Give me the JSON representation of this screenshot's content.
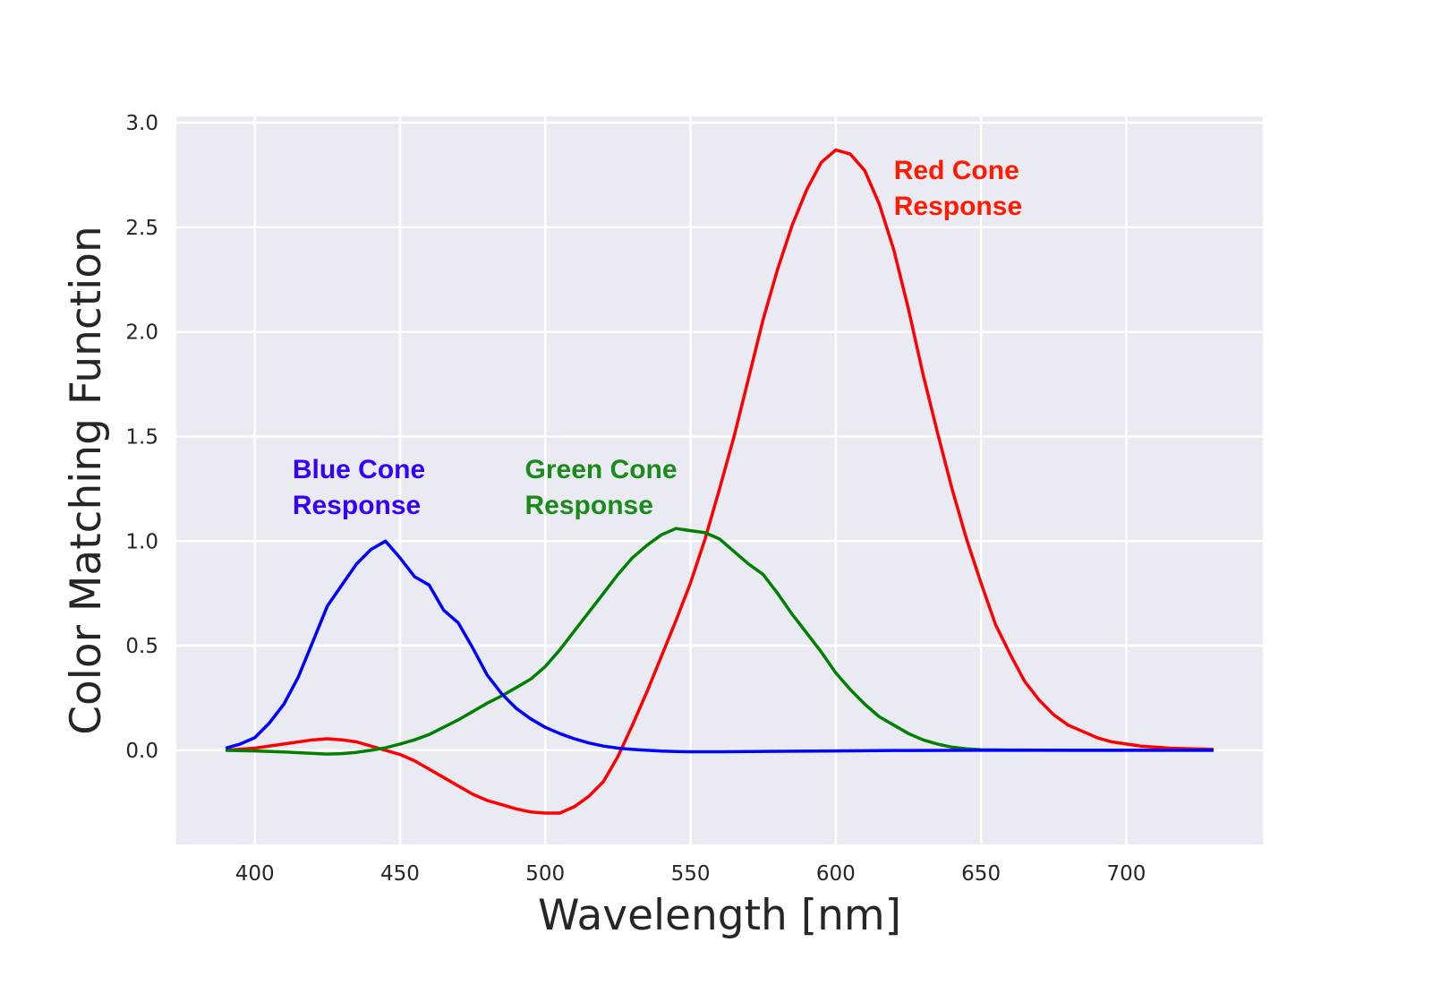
{
  "chart_data": {
    "type": "line",
    "xlabel": "Wavelength [nm]",
    "ylabel": "Color Matching Function",
    "xlim": [
      373,
      747
    ],
    "ylim": [
      -0.45,
      3.03
    ],
    "x_ticks": [
      400,
      450,
      500,
      550,
      600,
      650,
      700
    ],
    "y_ticks": [
      0.0,
      0.5,
      1.0,
      1.5,
      2.0,
      2.5,
      3.0
    ],
    "x_tick_labels": [
      "400",
      "450",
      "500",
      "550",
      "600",
      "650",
      "700"
    ],
    "y_tick_labels": [
      "0.0",
      "0.5",
      "1.0",
      "1.5",
      "2.0",
      "2.5",
      "3.0"
    ],
    "grid": true,
    "background": "#eaeaf2",
    "series": [
      {
        "color": "#ff0000",
        "x": [
          390,
          400,
          410,
          420,
          425,
          430,
          435,
          440,
          445,
          450,
          455,
          460,
          465,
          470,
          475,
          480,
          485,
          490,
          495,
          500,
          505,
          510,
          515,
          520,
          525,
          530,
          535,
          540,
          545,
          550,
          555,
          560,
          565,
          570,
          575,
          580,
          585,
          590,
          595,
          600,
          605,
          610,
          615,
          620,
          625,
          630,
          635,
          640,
          645,
          650,
          655,
          660,
          665,
          670,
          675,
          680,
          685,
          690,
          695,
          700,
          705,
          710,
          715,
          720,
          730
        ],
        "values": [
          0.0,
          0.01,
          0.03,
          0.05,
          0.055,
          0.05,
          0.04,
          0.02,
          0.0,
          -0.02,
          -0.05,
          -0.09,
          -0.13,
          -0.17,
          -0.21,
          -0.24,
          -0.26,
          -0.28,
          -0.295,
          -0.3,
          -0.3,
          -0.27,
          -0.22,
          -0.15,
          -0.03,
          0.12,
          0.28,
          0.45,
          0.62,
          0.8,
          1.01,
          1.25,
          1.5,
          1.78,
          2.06,
          2.3,
          2.51,
          2.68,
          2.81,
          2.87,
          2.85,
          2.77,
          2.61,
          2.39,
          2.11,
          1.8,
          1.52,
          1.25,
          1.01,
          0.8,
          0.6,
          0.46,
          0.33,
          0.24,
          0.17,
          0.12,
          0.09,
          0.06,
          0.04,
          0.03,
          0.02,
          0.015,
          0.01,
          0.008,
          0.004
        ]
      },
      {
        "color": "#008000",
        "x": [
          390,
          400,
          410,
          420,
          425,
          430,
          435,
          440,
          445,
          450,
          455,
          460,
          465,
          470,
          475,
          480,
          485,
          490,
          495,
          500,
          505,
          510,
          515,
          520,
          525,
          530,
          535,
          540,
          545,
          550,
          555,
          560,
          565,
          570,
          575,
          580,
          585,
          590,
          595,
          600,
          605,
          610,
          615,
          620,
          625,
          630,
          635,
          640,
          645,
          650,
          660,
          680,
          700,
          730
        ],
        "values": [
          0.0,
          -0.003,
          -0.008,
          -0.015,
          -0.018,
          -0.016,
          -0.01,
          0.0,
          0.012,
          0.03,
          0.05,
          0.075,
          0.11,
          0.145,
          0.185,
          0.225,
          0.26,
          0.3,
          0.34,
          0.4,
          0.48,
          0.57,
          0.66,
          0.75,
          0.84,
          0.92,
          0.98,
          1.03,
          1.06,
          1.05,
          1.04,
          1.01,
          0.95,
          0.89,
          0.84,
          0.75,
          0.65,
          0.56,
          0.47,
          0.37,
          0.29,
          0.22,
          0.16,
          0.12,
          0.08,
          0.05,
          0.03,
          0.015,
          0.007,
          0.003,
          0.001,
          0.0,
          0.0,
          0.0
        ]
      },
      {
        "color": "#0000ff",
        "x": [
          390,
          395,
          400,
          405,
          410,
          415,
          420,
          425,
          430,
          435,
          440,
          445,
          450,
          455,
          460,
          465,
          470,
          475,
          480,
          485,
          490,
          495,
          500,
          505,
          510,
          515,
          520,
          525,
          530,
          535,
          540,
          545,
          550,
          555,
          560,
          580,
          600,
          620,
          650,
          700,
          730
        ],
        "values": [
          0.01,
          0.03,
          0.06,
          0.13,
          0.22,
          0.35,
          0.52,
          0.69,
          0.79,
          0.89,
          0.96,
          1.0,
          0.92,
          0.83,
          0.79,
          0.67,
          0.61,
          0.49,
          0.36,
          0.27,
          0.2,
          0.15,
          0.11,
          0.08,
          0.055,
          0.035,
          0.02,
          0.01,
          0.004,
          0.0,
          -0.004,
          -0.006,
          -0.007,
          -0.007,
          -0.007,
          -0.005,
          -0.003,
          -0.001,
          0.0,
          0.0,
          0.0
        ]
      }
    ],
    "annotations": [
      {
        "lines": [
          "Blue Cone",
          "Response"
        ],
        "color": "#3300ff",
        "x": 413,
        "y": 1.3
      },
      {
        "lines": [
          "Green Cone",
          "Response"
        ],
        "color": "#1a8a1a",
        "x": 493,
        "y": 1.3
      },
      {
        "lines": [
          "Red Cone",
          "Response"
        ],
        "color": "#ff1a00",
        "x": 620,
        "y": 2.73
      }
    ]
  }
}
